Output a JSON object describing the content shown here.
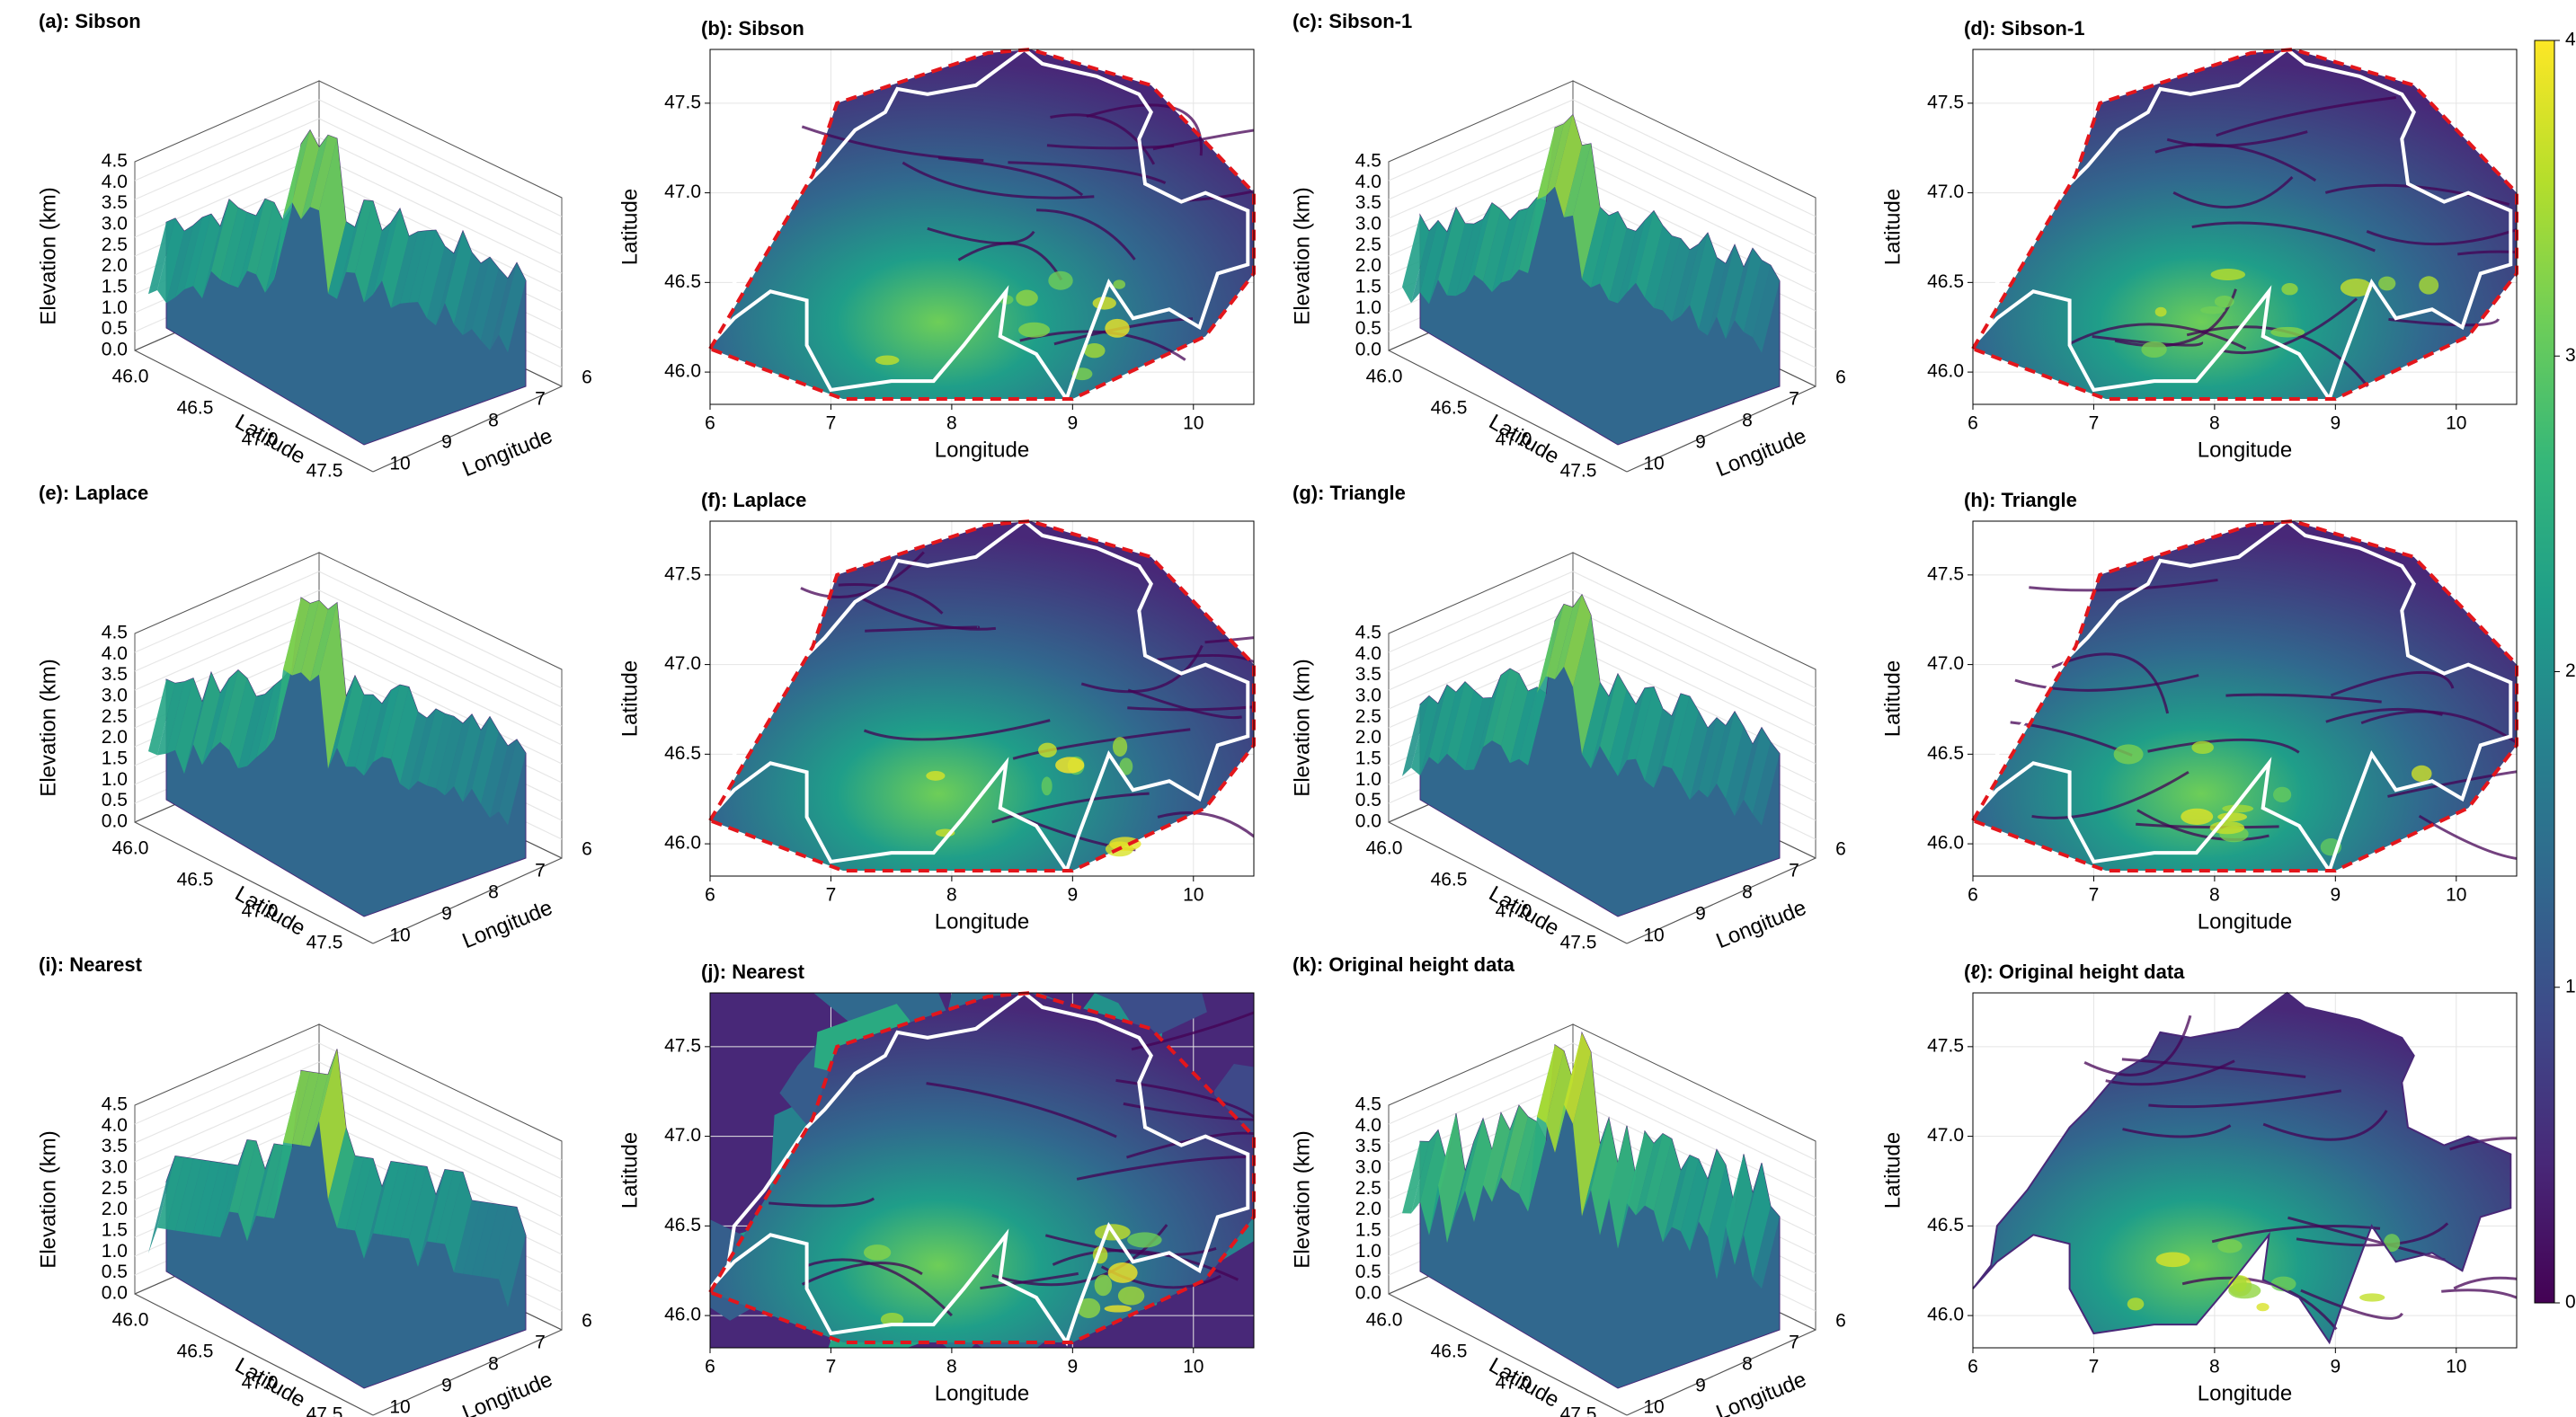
{
  "palette": {
    "viridis": [
      "#440154",
      "#482878",
      "#3e4989",
      "#31688e",
      "#26828e",
      "#1f9e89",
      "#35b779",
      "#6ece58",
      "#b5de2b",
      "#fde725"
    ],
    "boundary": "#ffffff",
    "hull": "#e3161c"
  },
  "axes3d": {
    "elev_label": "Elevation (km)",
    "lat_label": "Latitude",
    "lon_label": "Longitude",
    "elev_ticks": [
      "0.0",
      "0.5",
      "1.0",
      "1.5",
      "2.0",
      "2.5",
      "3.0",
      "3.5",
      "4.0",
      "4.5"
    ],
    "lat_ticks": [
      "46.0",
      "46.5",
      "47.0",
      "47.5"
    ],
    "lon_ticks": [
      "10",
      "9",
      "8",
      "7",
      "6"
    ]
  },
  "axes2d": {
    "xlabel": "Longitude",
    "ylabel": "Latitude",
    "xticks": [
      "6",
      "7",
      "8",
      "9",
      "10"
    ],
    "yticks": [
      "46.0",
      "46.5",
      "47.0",
      "47.5"
    ]
  },
  "colorbar": {
    "ticks": [
      "0",
      "1",
      "2",
      "3",
      "4"
    ],
    "range": [
      0,
      4
    ]
  },
  "chart_data": [
    {
      "panel": "a",
      "type": "surface",
      "title": "(a): Sibson",
      "zlim": [
        0,
        4.5
      ],
      "peak_km": 4.0,
      "style": "interp"
    },
    {
      "panel": "b",
      "type": "heatmap",
      "title": "(b): Sibson",
      "xlim": [
        6,
        10.5
      ],
      "ylim": [
        45.82,
        47.8
      ],
      "clim": [
        0,
        4
      ],
      "hull": true
    },
    {
      "panel": "c",
      "type": "surface",
      "title": "(c): Sibson-1",
      "zlim": [
        0,
        4.5
      ],
      "peak_km": 4.4,
      "style": "sibson1"
    },
    {
      "panel": "d",
      "type": "heatmap",
      "title": "(d): Sibson-1",
      "xlim": [
        6,
        10.5
      ],
      "ylim": [
        45.82,
        47.8
      ],
      "clim": [
        0,
        4
      ],
      "hull": true
    },
    {
      "panel": "e",
      "type": "surface",
      "title": "(e): Laplace",
      "zlim": [
        0,
        4.5
      ],
      "peak_km": 4.0,
      "style": "interp"
    },
    {
      "panel": "f",
      "type": "heatmap",
      "title": "(f): Laplace",
      "xlim": [
        6,
        10.5
      ],
      "ylim": [
        45.82,
        47.8
      ],
      "clim": [
        0,
        4
      ],
      "hull": true
    },
    {
      "panel": "g",
      "type": "surface",
      "title": "(g): Triangle",
      "zlim": [
        0,
        4.5
      ],
      "peak_km": 4.0,
      "style": "interp"
    },
    {
      "panel": "h",
      "type": "heatmap",
      "title": "(h): Triangle",
      "xlim": [
        6,
        10.5
      ],
      "ylim": [
        45.82,
        47.8
      ],
      "clim": [
        0,
        4
      ],
      "hull": true
    },
    {
      "panel": "i",
      "type": "surface",
      "title": "(i): Nearest",
      "zlim": [
        0,
        4.5
      ],
      "peak_km": 4.3,
      "style": "nearest"
    },
    {
      "panel": "j",
      "type": "heatmap",
      "title": "(j): Nearest",
      "xlim": [
        6,
        10.5
      ],
      "ylim": [
        45.82,
        47.8
      ],
      "clim": [
        0,
        4
      ],
      "hull": true,
      "style": "nearest"
    },
    {
      "panel": "k",
      "type": "surface",
      "title": "(k): Original height data",
      "zlim": [
        0,
        4.5
      ],
      "peak_km": 4.5,
      "style": "original"
    },
    {
      "panel": "l",
      "type": "heatmap",
      "title": "(ℓ): Original height data",
      "xlim": [
        6,
        10.5
      ],
      "ylim": [
        45.82,
        47.8
      ],
      "clim": [
        0,
        4
      ],
      "hull": false,
      "style": "original"
    }
  ]
}
